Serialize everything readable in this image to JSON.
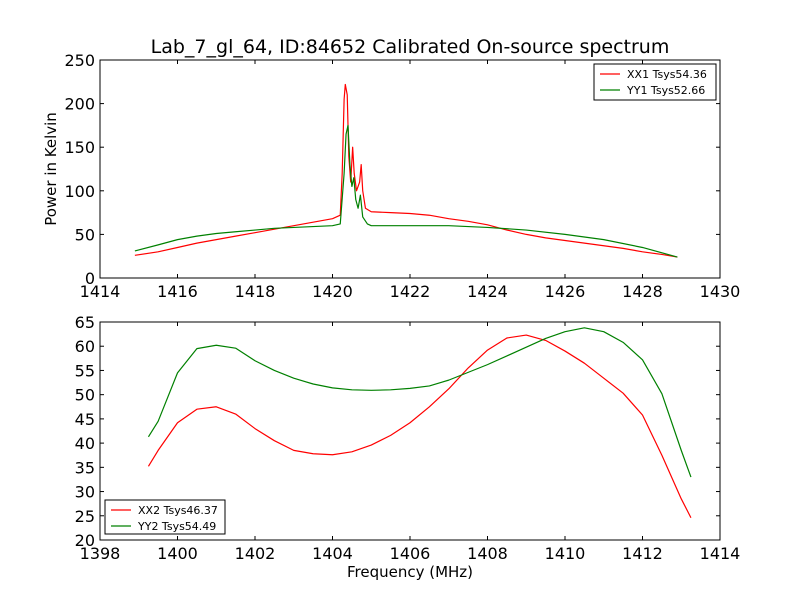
{
  "chart_data": [
    {
      "type": "line",
      "title": "Lab_7_gl_64, ID:84652 Calibrated On-source spectrum",
      "xlabel": "",
      "ylabel": "Power in Kelvin",
      "xlim": [
        1414,
        1430
      ],
      "ylim": [
        0,
        250
      ],
      "xticks": [
        1414,
        1416,
        1418,
        1420,
        1422,
        1424,
        1426,
        1428,
        1430
      ],
      "yticks": [
        0,
        50,
        100,
        150,
        200,
        250
      ],
      "grid": false,
      "legend_position": "top-right",
      "series": [
        {
          "name": "XX1 Tsys54.36",
          "color": "#ff0000",
          "points": [
            [
              1414.9,
              26
            ],
            [
              1415.5,
              30
            ],
            [
              1416,
              35
            ],
            [
              1416.5,
              40
            ],
            [
              1417,
              44
            ],
            [
              1417.5,
              48
            ],
            [
              1418,
              52
            ],
            [
              1418.5,
              56
            ],
            [
              1419,
              60
            ],
            [
              1419.5,
              64
            ],
            [
              1420,
              68
            ],
            [
              1420.2,
              72
            ],
            [
              1420.25,
              120
            ],
            [
              1420.3,
              205
            ],
            [
              1420.33,
              222
            ],
            [
              1420.38,
              210
            ],
            [
              1420.42,
              140
            ],
            [
              1420.47,
              110
            ],
            [
              1420.52,
              150
            ],
            [
              1420.56,
              120
            ],
            [
              1420.62,
              100
            ],
            [
              1420.7,
              110
            ],
            [
              1420.74,
              130
            ],
            [
              1420.78,
              100
            ],
            [
              1420.85,
              80
            ],
            [
              1421,
              76
            ],
            [
              1421.5,
              75
            ],
            [
              1422,
              74
            ],
            [
              1422.5,
              72
            ],
            [
              1423,
              68
            ],
            [
              1423.5,
              65
            ],
            [
              1424,
              61
            ],
            [
              1424.5,
              55
            ],
            [
              1425,
              50
            ],
            [
              1425.5,
              46
            ],
            [
              1426,
              43
            ],
            [
              1426.5,
              40
            ],
            [
              1427,
              37
            ],
            [
              1427.5,
              34
            ],
            [
              1428,
              30
            ],
            [
              1428.5,
              27
            ],
            [
              1428.9,
              24
            ]
          ]
        },
        {
          "name": "YY1 Tsys52.66",
          "color": "#008000",
          "points": [
            [
              1414.9,
              31
            ],
            [
              1415.5,
              38
            ],
            [
              1416,
              44
            ],
            [
              1416.5,
              48
            ],
            [
              1417,
              51
            ],
            [
              1417.5,
              53
            ],
            [
              1418,
              55
            ],
            [
              1418.5,
              57
            ],
            [
              1419,
              58
            ],
            [
              1419.5,
              59
            ],
            [
              1420,
              60
            ],
            [
              1420.2,
              62
            ],
            [
              1420.3,
              120
            ],
            [
              1420.35,
              165
            ],
            [
              1420.4,
              175
            ],
            [
              1420.45,
              130
            ],
            [
              1420.5,
              105
            ],
            [
              1420.55,
              115
            ],
            [
              1420.6,
              90
            ],
            [
              1420.66,
              80
            ],
            [
              1420.72,
              95
            ],
            [
              1420.78,
              70
            ],
            [
              1420.9,
              62
            ],
            [
              1421,
              60
            ],
            [
              1422,
              60
            ],
            [
              1423,
              60
            ],
            [
              1424,
              58
            ],
            [
              1425,
              55
            ],
            [
              1426,
              50
            ],
            [
              1427,
              44
            ],
            [
              1428,
              35
            ],
            [
              1428.9,
              24
            ]
          ]
        }
      ]
    },
    {
      "type": "line",
      "title": "",
      "xlabel": "Frequency (MHz)",
      "ylabel": "",
      "xlim": [
        1398,
        1414
      ],
      "ylim": [
        20,
        65
      ],
      "xticks": [
        1398,
        1400,
        1402,
        1404,
        1406,
        1408,
        1410,
        1412,
        1414
      ],
      "yticks": [
        20,
        25,
        30,
        35,
        40,
        45,
        50,
        55,
        60,
        65
      ],
      "grid": false,
      "legend_position": "bottom-left",
      "series": [
        {
          "name": "XX2 Tsys46.37",
          "color": "#ff0000",
          "points": [
            [
              1399.25,
              35.2
            ],
            [
              1399.5,
              38.5
            ],
            [
              1400,
              44.2
            ],
            [
              1400.5,
              47
            ],
            [
              1401,
              47.5
            ],
            [
              1401.5,
              46
            ],
            [
              1402,
              43
            ],
            [
              1402.5,
              40.5
            ],
            [
              1403,
              38.5
            ],
            [
              1403.5,
              37.8
            ],
            [
              1404,
              37.6
            ],
            [
              1404.5,
              38.2
            ],
            [
              1405,
              39.6
            ],
            [
              1405.5,
              41.6
            ],
            [
              1406,
              44.2
            ],
            [
              1406.5,
              47.5
            ],
            [
              1407,
              51.2
            ],
            [
              1407.5,
              55.5
            ],
            [
              1408,
              59.2
            ],
            [
              1408.5,
              61.7
            ],
            [
              1409,
              62.3
            ],
            [
              1409.5,
              61.2
            ],
            [
              1410,
              59
            ],
            [
              1410.5,
              56.5
            ],
            [
              1411,
              53.4
            ],
            [
              1411.5,
              50.3
            ],
            [
              1412,
              45.8
            ],
            [
              1412.5,
              37.5
            ],
            [
              1413,
              28.5
            ],
            [
              1413.25,
              24.6
            ]
          ]
        },
        {
          "name": "YY2 Tsys54.49",
          "color": "#008000",
          "points": [
            [
              1399.25,
              41.3
            ],
            [
              1399.5,
              44.5
            ],
            [
              1400,
              54.5
            ],
            [
              1400.5,
              59.5
            ],
            [
              1401,
              60.2
            ],
            [
              1401.5,
              59.6
            ],
            [
              1402,
              57
            ],
            [
              1402.5,
              55
            ],
            [
              1403,
              53.4
            ],
            [
              1403.5,
              52.2
            ],
            [
              1404,
              51.4
            ],
            [
              1404.5,
              51
            ],
            [
              1405,
              50.9
            ],
            [
              1405.5,
              51
            ],
            [
              1406,
              51.3
            ],
            [
              1406.5,
              51.8
            ],
            [
              1407,
              53
            ],
            [
              1407.5,
              54.6
            ],
            [
              1408,
              56.2
            ],
            [
              1408.5,
              58
            ],
            [
              1409,
              59.8
            ],
            [
              1409.5,
              61.6
            ],
            [
              1410,
              63
            ],
            [
              1410.5,
              63.8
            ],
            [
              1411,
              63
            ],
            [
              1411.5,
              60.8
            ],
            [
              1412,
              57.2
            ],
            [
              1412.5,
              50.2
            ],
            [
              1413,
              38.5
            ],
            [
              1413.25,
              33
            ]
          ]
        }
      ]
    }
  ]
}
